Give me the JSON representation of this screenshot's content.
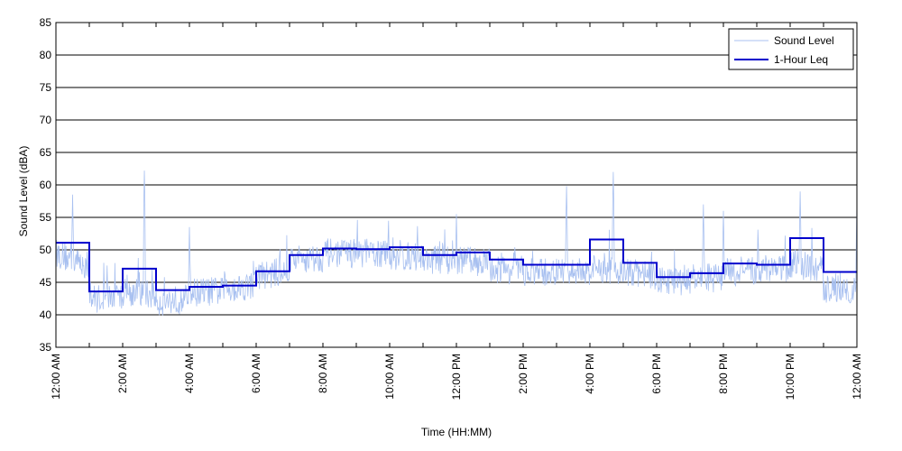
{
  "chart_data": {
    "type": "line",
    "xlabel": "Time (HH:MM)",
    "ylabel": "Sound Level (dBA)",
    "ylim": [
      35,
      85
    ],
    "xlim_hours": [
      0,
      24
    ],
    "y_ticks": [
      35,
      40,
      45,
      50,
      55,
      60,
      65,
      70,
      75,
      80,
      85
    ],
    "x_ticks": [
      {
        "hour": 0,
        "label": "12:00 AM"
      },
      {
        "hour": 2,
        "label": "2:00 AM"
      },
      {
        "hour": 4,
        "label": "4:00 AM"
      },
      {
        "hour": 6,
        "label": "6:00 AM"
      },
      {
        "hour": 8,
        "label": "8:00 AM"
      },
      {
        "hour": 10,
        "label": "10:00 AM"
      },
      {
        "hour": 12,
        "label": "12:00 PM"
      },
      {
        "hour": 14,
        "label": "2:00 PM"
      },
      {
        "hour": 16,
        "label": "4:00 PM"
      },
      {
        "hour": 18,
        "label": "6:00 PM"
      },
      {
        "hour": 20,
        "label": "8:00 PM"
      },
      {
        "hour": 22,
        "label": "10:00 PM"
      },
      {
        "hour": 24,
        "label": "12:00 AM"
      }
    ],
    "grid": "horizontal",
    "legend_position": "top-right",
    "series": [
      {
        "name": "Sound Level",
        "color": "#a8c0f0",
        "hourly_baseline_dBA": [
          49.5,
          42.5,
          43.5,
          42.0,
          43.5,
          44.0,
          46.0,
          48.5,
          49.5,
          49.5,
          49.0,
          48.5,
          48.5,
          47.0,
          46.5,
          46.5,
          47.0,
          46.5,
          45.0,
          45.5,
          46.5,
          47.0,
          48.0,
          44.0
        ],
        "peaks": [
          {
            "hour": 0.5,
            "dBA": 58.5
          },
          {
            "hour": 2.65,
            "dBA": 62.2
          },
          {
            "hour": 4.0,
            "dBA": 53.5
          },
          {
            "hour": 12.0,
            "dBA": 55.5
          },
          {
            "hour": 15.3,
            "dBA": 59.8
          },
          {
            "hour": 16.7,
            "dBA": 62.0
          },
          {
            "hour": 19.4,
            "dBA": 57.0
          },
          {
            "hour": 20.0,
            "dBA": 56.0
          },
          {
            "hour": 22.3,
            "dBA": 59.0
          },
          {
            "hour": 24.0,
            "dBA": 57.0
          }
        ]
      },
      {
        "name": "1-Hour Leq",
        "color": "#0000cc",
        "hourly_values_dBA": [
          51.1,
          43.6,
          47.1,
          43.8,
          44.3,
          44.5,
          46.7,
          49.2,
          50.2,
          50.1,
          50.4,
          49.2,
          49.6,
          48.5,
          47.7,
          47.7,
          51.6,
          48.0,
          45.8,
          46.4,
          47.9,
          47.7,
          51.8,
          46.6
        ]
      }
    ]
  }
}
